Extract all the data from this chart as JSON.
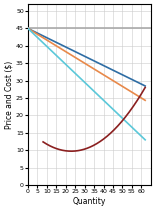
{
  "title": "",
  "xlabel": "Quantity",
  "ylabel": "Price and Cost ($)",
  "xlim": [
    0,
    65
  ],
  "ylim": [
    0,
    52
  ],
  "xticks": [
    0,
    5,
    10,
    15,
    20,
    25,
    30,
    35,
    40,
    45,
    50,
    55,
    60
  ],
  "yticks": [
    0,
    5,
    10,
    15,
    20,
    25,
    30,
    35,
    40,
    45,
    50
  ],
  "gray_line_y": 45,
  "demand_start": 45,
  "demand_end_x": 60,
  "demand_end_y": 29,
  "mr_start": 45,
  "mr_end_x": 60,
  "mr_end_y": 14,
  "atc_a": 0.012,
  "atc_b": -0.55,
  "atc_c": 16,
  "atc_x_min": 8,
  "orange_start": 45,
  "orange_end_x": 60,
  "orange_end_y": 25,
  "gray_color": "#aaaaaa",
  "demand_color": "#2e6da4",
  "mr_color": "#5bc8d9",
  "atc_color": "#8b2020",
  "orange_color": "#e8894a",
  "bg_color": "#ffffff",
  "grid_color": "#cccccc",
  "linewidth": 1.2,
  "fig_width": 1.55,
  "fig_height": 2.1,
  "dpi": 100
}
